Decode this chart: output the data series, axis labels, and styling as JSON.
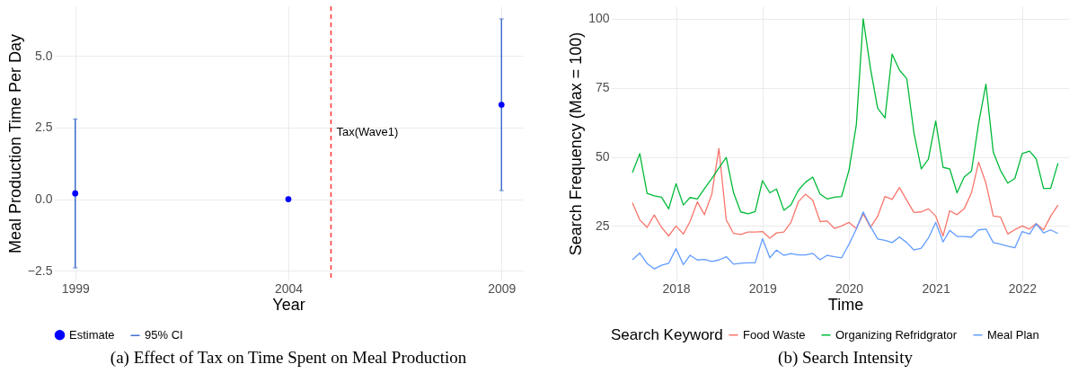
{
  "chart_data": [
    {
      "type": "scatter",
      "title": "(a) Effect of Tax on Time Spent on Meal Production",
      "xlabel": "Year",
      "ylabel": "Meal Production Time Per Day",
      "x": [
        1999,
        2004,
        2009
      ],
      "series": [
        {
          "name": "Estimate",
          "color": "#0000ff",
          "values": [
            0.2,
            0,
            3.3
          ],
          "errors": [
            [
              -2.4,
              2.8
            ],
            null,
            [
              0.3,
              6.3
            ]
          ]
        }
      ],
      "annotations": [
        "95% CI"
      ],
      "xlim": [
        1998.5,
        2009.5
      ],
      "xticks": [
        1999,
        2004,
        2009
      ],
      "ylim": [
        -2.84,
        6.74
      ],
      "yticks": [
        {
          "value": -2.5,
          "label": "−2.5"
        },
        {
          "value": 0,
          "label": "0.0"
        },
        {
          "value": 2.5,
          "label": "2.5"
        },
        {
          "value": 5,
          "label": "5.0"
        }
      ],
      "ref_lines": [
        {
          "axis": "x",
          "value": 2005,
          "label": "Tax(Wave1)",
          "color": "#ff3333",
          "line_style": "dashed"
        }
      ],
      "grid": true,
      "legend": "bottom",
      "marker": "circle"
    },
    {
      "type": "line",
      "title": "(b) Search Intensity",
      "xlabel": "Time",
      "ylabel": "Search Frequency (Max = 100)",
      "legend_title": "Search Keyword",
      "x": [
        "2017-07",
        "2017-08",
        "2017-09",
        "2017-10",
        "2017-11",
        "2017-12",
        "2018-01",
        "2018-02",
        "2018-03",
        "2018-04",
        "2018-05",
        "2018-06",
        "2018-07",
        "2018-08",
        "2018-09",
        "2018-10",
        "2018-11",
        "2018-12",
        "2019-01",
        "2019-02",
        "2019-03",
        "2019-04",
        "2019-05",
        "2019-06",
        "2019-07",
        "2019-08",
        "2019-09",
        "2019-10",
        "2019-11",
        "2019-12",
        "2020-01",
        "2020-02",
        "2020-03",
        "2020-04",
        "2020-05",
        "2020-06",
        "2020-07",
        "2020-08",
        "2020-09",
        "2020-10",
        "2020-11",
        "2020-12",
        "2021-01",
        "2021-02",
        "2021-03",
        "2021-04",
        "2021-05",
        "2021-06",
        "2021-07",
        "2021-08",
        "2021-09",
        "2021-10",
        "2021-11",
        "2021-12",
        "2022-01",
        "2022-02",
        "2022-03",
        "2022-04",
        "2022-05",
        "2022-06"
      ],
      "series": [
        {
          "name": "Food Waste",
          "color": "#f8766d",
          "values": [
            33.4,
            27.2,
            24.5,
            29.0,
            24.5,
            21.4,
            25.0,
            22.1,
            26.6,
            33.7,
            29.1,
            36.5,
            53.1,
            27.2,
            22.3,
            21.9,
            22.8,
            22.8,
            23.0,
            20.6,
            22.5,
            22.8,
            26.3,
            33.7,
            36.5,
            34.3,
            26.6,
            26.8,
            24.1,
            25.0,
            26.3,
            24.1,
            29.4,
            24.5,
            28.5,
            35.7,
            34.6,
            38.9,
            34.3,
            29.9,
            30.1,
            31.2,
            28.6,
            21.4,
            30.5,
            29.1,
            31.2,
            37.0,
            48.1,
            40.5,
            28.6,
            28.3,
            22.1,
            23.7,
            25.0,
            23.9,
            25.9,
            23.6,
            28.5,
            32.6
          ]
        },
        {
          "name": "Organizing Refridgrator",
          "color": "#00ba38",
          "values": [
            44.3,
            51.2,
            36.8,
            35.9,
            35.4,
            31.2,
            40.3,
            32.6,
            35.3,
            34.8,
            38.5,
            42.2,
            46.0,
            49.8,
            37.0,
            30.1,
            29.4,
            30.2,
            41.4,
            37.0,
            38.4,
            30.7,
            32.6,
            37.9,
            40.8,
            42.7,
            36.5,
            34.8,
            35.4,
            35.7,
            45.2,
            61.6,
            100,
            81.8,
            67.6,
            64.1,
            87.2,
            81.4,
            78.3,
            58.8,
            45.7,
            49.2,
            63.0,
            46.2,
            45.7,
            37.0,
            42.7,
            44.9,
            62.2,
            76.3,
            51.7,
            45.2,
            40.5,
            42.2,
            51.2,
            52.1,
            49.3,
            38.6,
            38.6,
            47.7
          ]
        },
        {
          "name": "Meal Plan",
          "color": "#619cff",
          "values": [
            12.8,
            15.2,
            11.4,
            9.5,
            10.8,
            11.5,
            16.8,
            11.0,
            14.4,
            12.7,
            12.9,
            12.2,
            12.7,
            13.9,
            11.2,
            11.5,
            11.7,
            11.7,
            20.4,
            13.5,
            16.3,
            14.4,
            15.0,
            14.5,
            14.5,
            15.1,
            12.8,
            14.4,
            13.9,
            13.5,
            18.4,
            23.9,
            30.1,
            24.8,
            20.3,
            19.8,
            19.0,
            21.0,
            19.0,
            16.3,
            17.0,
            20.6,
            26.3,
            19.2,
            23.4,
            21.2,
            21.2,
            21.0,
            23.6,
            23.9,
            19.0,
            18.4,
            17.7,
            17.1,
            23.0,
            22.1,
            25.8,
            22.5,
            23.6,
            22.3
          ]
        }
      ],
      "xlim": [
        "2017-04",
        "2022-09"
      ],
      "xticks": [
        "2018",
        "2019",
        "2020",
        "2021",
        "2022"
      ],
      "ylim": [
        5.3,
        104.5
      ],
      "yticks": [
        25,
        50,
        75,
        100
      ],
      "grid": true,
      "legend": "bottom"
    }
  ]
}
